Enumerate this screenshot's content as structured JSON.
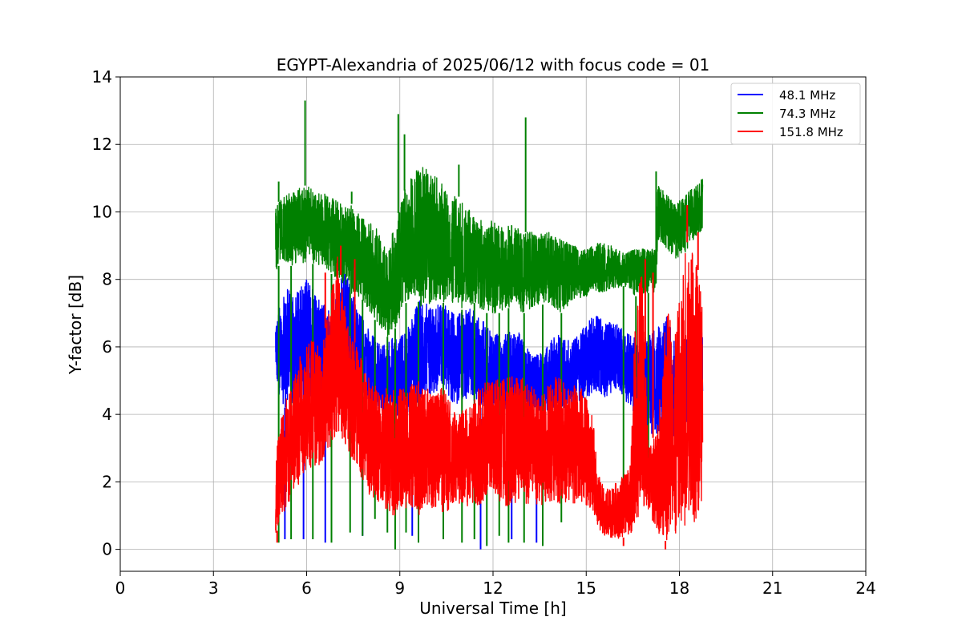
{
  "chart_data": {
    "type": "line",
    "title": "EGYPT-Alexandria of 2025/06/12 with focus code = 01",
    "xlabel": "Universal Time [h]",
    "ylabel": "Y-factor [dB]",
    "xlim": [
      0,
      24
    ],
    "ylim": [
      -0.65,
      14
    ],
    "xticks": [
      0,
      3,
      6,
      9,
      12,
      15,
      18,
      21,
      24
    ],
    "yticks": [
      0,
      2,
      4,
      6,
      8,
      10,
      12,
      14
    ],
    "grid": true,
    "legend_position": "top-right",
    "series": [
      {
        "name": "48.1 MHz",
        "color": "#0000ff",
        "band": {
          "x": [
            5.0,
            5.3,
            5.6,
            6.0,
            6.4,
            6.8,
            7.2,
            7.6,
            8.0,
            8.4,
            8.8,
            9.2,
            9.6,
            10.0,
            10.4,
            10.8,
            11.2,
            11.6,
            12.0,
            12.4,
            12.8,
            13.2,
            13.6,
            14.0,
            14.4,
            14.8,
            15.2,
            15.6,
            16.0,
            16.4,
            16.8,
            17.2,
            17.6,
            18.0,
            18.4,
            18.75
          ],
          "low": [
            4.8,
            4.2,
            4.3,
            4.3,
            4.3,
            4.6,
            4.6,
            4.5,
            4.3,
            4.1,
            3.8,
            3.9,
            4.3,
            4.5,
            4.6,
            4.2,
            4.5,
            4.2,
            4.2,
            4.1,
            4.2,
            4.2,
            4.0,
            4.2,
            4.2,
            4.4,
            4.6,
            4.5,
            4.8,
            4.2,
            3.5,
            3.4,
            3.1,
            3.0,
            4.2,
            4.4
          ],
          "high": [
            6.7,
            7.8,
            7.6,
            8.0,
            7.4,
            7.0,
            8.4,
            7.2,
            6.5,
            6.0,
            6.3,
            6.4,
            7.4,
            7.2,
            7.3,
            6.9,
            7.2,
            6.9,
            6.4,
            6.4,
            6.5,
            5.8,
            5.8,
            6.4,
            6.2,
            6.4,
            7.0,
            6.8,
            6.7,
            6.4,
            6.2,
            6.5,
            6.9,
            5.8,
            6.7,
            6.4
          ]
        },
        "dips": [
          {
            "x": 5.3,
            "y": 0.3
          },
          {
            "x": 5.9,
            "y": 0.3
          },
          {
            "x": 6.6,
            "y": 0.2
          },
          {
            "x": 7.8,
            "y": 0.4
          },
          {
            "x": 9.4,
            "y": 0.4
          },
          {
            "x": 11.6,
            "y": 0.0
          },
          {
            "x": 12.6,
            "y": 0.3
          },
          {
            "x": 13.4,
            "y": 0.2
          }
        ]
      },
      {
        "name": "74.3 MHz",
        "color": "#008000",
        "band": {
          "x": [
            5.0,
            5.2,
            5.5,
            6.0,
            6.5,
            7.0,
            7.4,
            7.8,
            8.2,
            8.6,
            8.9,
            9.2,
            9.5,
            9.8,
            10.2,
            10.6,
            11.0,
            11.4,
            11.8,
            12.2,
            12.6,
            13.0,
            13.4,
            13.8,
            14.2,
            14.6,
            15.0,
            15.4,
            15.8,
            16.2,
            16.6,
            17.0,
            17.25,
            17.3,
            17.6,
            17.9,
            18.2,
            18.5,
            18.75
          ],
          "low": [
            8.2,
            8.6,
            8.4,
            8.5,
            8.4,
            8.0,
            7.6,
            7.4,
            6.8,
            6.3,
            6.6,
            7.3,
            7.5,
            7.0,
            7.4,
            7.2,
            7.1,
            7.3,
            7.0,
            7.0,
            7.2,
            7.0,
            7.2,
            7.3,
            7.0,
            7.4,
            7.5,
            7.6,
            7.7,
            7.8,
            7.5,
            7.6,
            7.6,
            9.2,
            8.9,
            8.6,
            8.8,
            9.2,
            9.5
          ],
          "high": [
            10.2,
            10.4,
            10.6,
            10.8,
            10.6,
            10.3,
            10.3,
            9.8,
            9.6,
            8.9,
            9.8,
            10.8,
            11.2,
            11.4,
            11.0,
            10.6,
            10.4,
            9.8,
            9.8,
            9.6,
            9.6,
            9.4,
            9.4,
            9.4,
            9.2,
            9.0,
            8.9,
            9.1,
            9.0,
            8.8,
            8.9,
            8.9,
            8.9,
            10.8,
            10.5,
            10.2,
            10.6,
            10.8,
            11.0
          ]
        },
        "spikes": [
          {
            "x": 5.95,
            "y": 13.3
          },
          {
            "x": 8.95,
            "y": 12.9
          },
          {
            "x": 9.15,
            "y": 12.3
          },
          {
            "x": 10.9,
            "y": 11.4
          },
          {
            "x": 13.05,
            "y": 12.8
          },
          {
            "x": 17.25,
            "y": 11.2
          },
          {
            "x": 5.1,
            "y": 10.9
          },
          {
            "x": 7.45,
            "y": 10.6
          }
        ],
        "dips": [
          {
            "x": 5.1,
            "y": 0.2
          },
          {
            "x": 5.5,
            "y": 0.3
          },
          {
            "x": 6.2,
            "y": 0.3
          },
          {
            "x": 6.8,
            "y": 0.2
          },
          {
            "x": 7.4,
            "y": 0.5
          },
          {
            "x": 7.8,
            "y": 0.4
          },
          {
            "x": 8.2,
            "y": 0.9
          },
          {
            "x": 8.6,
            "y": 0.5
          },
          {
            "x": 8.85,
            "y": 0.0
          },
          {
            "x": 9.2,
            "y": 0.5
          },
          {
            "x": 9.6,
            "y": 0.2
          },
          {
            "x": 10.4,
            "y": 0.3
          },
          {
            "x": 11.0,
            "y": 0.2
          },
          {
            "x": 11.4,
            "y": 0.3
          },
          {
            "x": 11.8,
            "y": 0.1
          },
          {
            "x": 12.2,
            "y": 0.4
          },
          {
            "x": 12.5,
            "y": 0.2
          },
          {
            "x": 13.0,
            "y": 0.2
          },
          {
            "x": 13.6,
            "y": 0.1
          },
          {
            "x": 14.2,
            "y": 0.8
          },
          {
            "x": 16.2,
            "y": 1.1
          },
          {
            "x": 16.6,
            "y": 1.8
          },
          {
            "x": 17.0,
            "y": 1.7
          }
        ]
      },
      {
        "name": "151.8 MHz",
        "color": "#ff0000",
        "band": {
          "x": [
            5.0,
            5.2,
            5.5,
            6.0,
            6.5,
            7.0,
            7.3,
            7.6,
            8.0,
            8.4,
            8.8,
            9.2,
            9.6,
            10.0,
            10.4,
            10.8,
            11.2,
            11.6,
            12.0,
            12.4,
            12.8,
            13.2,
            13.6,
            14.0,
            14.4,
            14.8,
            15.2,
            15.4,
            15.6,
            16.0,
            16.4,
            16.6,
            16.8,
            17.0,
            17.3,
            17.6,
            17.9,
            18.2,
            18.5,
            18.75
          ],
          "low": [
            0.4,
            1.0,
            1.5,
            2.4,
            2.5,
            3.5,
            2.7,
            2.5,
            1.6,
            1.3,
            1.0,
            1.2,
            1.0,
            1.2,
            1.0,
            1.4,
            1.2,
            1.3,
            1.6,
            1.2,
            1.4,
            1.3,
            1.3,
            1.4,
            1.3,
            1.4,
            1.2,
            0.6,
            0.4,
            0.3,
            0.4,
            0.6,
            1.4,
            1.0,
            0.5,
            0.2,
            0.2,
            0.6,
            0.8,
            1.3
          ],
          "high": [
            2.8,
            4.0,
            5.0,
            6.3,
            6.0,
            8.8,
            6.8,
            6.0,
            5.1,
            4.8,
            4.8,
            4.8,
            5.0,
            4.7,
            4.8,
            4.0,
            4.2,
            4.9,
            5.0,
            5.1,
            5.2,
            4.9,
            4.7,
            5.1,
            5.0,
            4.9,
            4.0,
            2.2,
            1.8,
            2.0,
            2.4,
            7.3,
            8.3,
            3.0,
            3.6,
            7.3,
            6.8,
            9.2,
            8.6,
            7.8
          ]
        },
        "spikes": [
          {
            "x": 7.1,
            "y": 9.0
          },
          {
            "x": 7.55,
            "y": 8.6
          },
          {
            "x": 6.6,
            "y": 8.2
          },
          {
            "x": 16.9,
            "y": 8.6
          },
          {
            "x": 18.25,
            "y": 10.2
          },
          {
            "x": 18.6,
            "y": 9.4
          },
          {
            "x": 17.15,
            "y": 8.2
          }
        ],
        "dips": [
          {
            "x": 5.05,
            "y": 0.2
          },
          {
            "x": 16.2,
            "y": 0.1
          },
          {
            "x": 17.55,
            "y": 0.0
          }
        ]
      }
    ]
  }
}
